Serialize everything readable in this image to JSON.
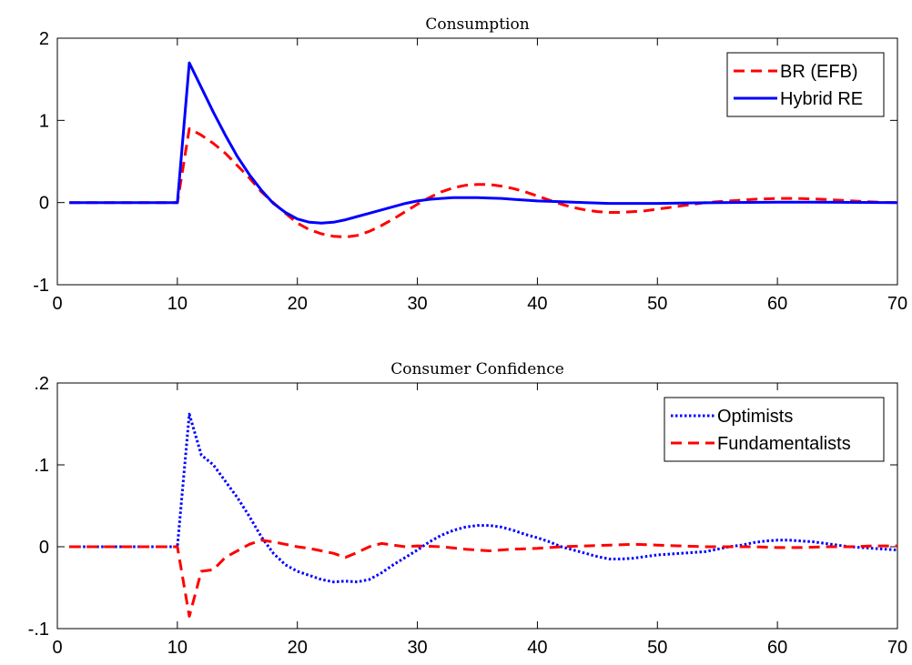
{
  "chart_data": [
    {
      "type": "line",
      "title": "Consumption",
      "xlabel": "",
      "ylabel": "",
      "xlim": [
        0,
        70
      ],
      "ylim": [
        -1,
        2
      ],
      "xticks": [
        0,
        10,
        20,
        30,
        40,
        50,
        60,
        70
      ],
      "yticks": [
        -1,
        0,
        1,
        2
      ],
      "grid": false,
      "legend_position": "top-right",
      "series": [
        {
          "name": "BR (EFB)",
          "color": "#ff0000",
          "style": "dashed",
          "x": [
            1,
            10,
            11,
            12,
            13,
            14,
            15,
            16,
            17,
            18,
            19,
            20,
            21,
            22,
            23,
            24,
            25,
            26,
            27,
            28,
            29,
            30,
            31,
            32,
            33,
            34,
            35,
            36,
            37,
            38,
            39,
            40,
            41,
            42,
            43,
            44,
            45,
            46,
            47,
            48,
            49,
            50,
            51,
            52,
            53,
            54,
            55,
            56,
            57,
            58,
            59,
            60,
            61,
            62,
            63,
            64,
            65,
            66,
            67,
            68,
            69,
            70
          ],
          "y": [
            0,
            0,
            0.9,
            0.82,
            0.72,
            0.6,
            0.45,
            0.3,
            0.13,
            0.0,
            -0.13,
            -0.25,
            -0.33,
            -0.38,
            -0.41,
            -0.42,
            -0.4,
            -0.35,
            -0.28,
            -0.2,
            -0.11,
            -0.02,
            0.06,
            0.13,
            0.18,
            0.21,
            0.22,
            0.22,
            0.2,
            0.17,
            0.13,
            0.08,
            0.03,
            -0.02,
            -0.06,
            -0.09,
            -0.11,
            -0.12,
            -0.12,
            -0.11,
            -0.1,
            -0.08,
            -0.06,
            -0.04,
            -0.02,
            0.0,
            0.01,
            0.02,
            0.03,
            0.04,
            0.045,
            0.05,
            0.05,
            0.048,
            0.044,
            0.038,
            0.03,
            0.022,
            0.014,
            0.007,
            0.002,
            0.0
          ]
        },
        {
          "name": "Hybrid RE",
          "color": "#0000ff",
          "style": "solid",
          "x": [
            1,
            10,
            11,
            12,
            13,
            14,
            15,
            16,
            17,
            18,
            19,
            20,
            21,
            22,
            23,
            24,
            25,
            26,
            27,
            28,
            29,
            30,
            31,
            32,
            33,
            34,
            35,
            36,
            37,
            38,
            39,
            40,
            42,
            44,
            46,
            48,
            50,
            55,
            60,
            65,
            70
          ],
          "y": [
            0,
            0,
            1.7,
            1.4,
            1.1,
            0.82,
            0.56,
            0.34,
            0.15,
            -0.01,
            -0.12,
            -0.2,
            -0.24,
            -0.25,
            -0.24,
            -0.21,
            -0.17,
            -0.13,
            -0.09,
            -0.05,
            -0.01,
            0.02,
            0.04,
            0.05,
            0.06,
            0.06,
            0.06,
            0.055,
            0.05,
            0.04,
            0.03,
            0.02,
            0.01,
            0.0,
            -0.01,
            -0.01,
            -0.01,
            0.0,
            0.005,
            0.003,
            0.0
          ]
        }
      ]
    },
    {
      "type": "line",
      "title": "Consumer Confidence",
      "xlabel": "",
      "ylabel": "",
      "xlim": [
        0,
        70
      ],
      "ylim": [
        -0.1,
        0.2
      ],
      "xticks": [
        0,
        10,
        20,
        30,
        40,
        50,
        60,
        70
      ],
      "yticks": [
        -0.1,
        0,
        0.1,
        0.2
      ],
      "grid": false,
      "legend_position": "top-right",
      "series": [
        {
          "name": "Optimists",
          "color": "#0000ff",
          "style": "dotted",
          "x": [
            1,
            10,
            11,
            12,
            13,
            14,
            15,
            16,
            17,
            18,
            19,
            20,
            21,
            22,
            23,
            24,
            25,
            26,
            27,
            28,
            29,
            30,
            31,
            32,
            33,
            34,
            35,
            36,
            37,
            38,
            39,
            40,
            41,
            42,
            43,
            44,
            45,
            46,
            47,
            48,
            49,
            50,
            51,
            52,
            53,
            54,
            55,
            56,
            57,
            58,
            59,
            60,
            61,
            62,
            63,
            64,
            65,
            66,
            67,
            68,
            69,
            70
          ],
          "y": [
            0,
            0,
            0.162,
            0.112,
            0.1,
            0.08,
            0.06,
            0.037,
            0.012,
            -0.008,
            -0.022,
            -0.03,
            -0.035,
            -0.04,
            -0.043,
            -0.042,
            -0.043,
            -0.04,
            -0.032,
            -0.022,
            -0.013,
            -0.004,
            0.006,
            0.014,
            0.02,
            0.024,
            0.026,
            0.026,
            0.024,
            0.02,
            0.015,
            0.011,
            0.006,
            0.0,
            -0.004,
            -0.008,
            -0.012,
            -0.015,
            -0.015,
            -0.014,
            -0.012,
            -0.01,
            -0.009,
            -0.008,
            -0.007,
            -0.006,
            -0.003,
            0.0,
            0.002,
            0.005,
            0.007,
            0.008,
            0.008,
            0.007,
            0.006,
            0.004,
            0.002,
            0.0,
            -0.001,
            -0.002,
            -0.003,
            -0.004
          ]
        },
        {
          "name": "Fundamentalists",
          "color": "#ff0000",
          "style": "dashed",
          "x": [
            1,
            10,
            11,
            12,
            13,
            14,
            15,
            16,
            17,
            18,
            19,
            20,
            21,
            22,
            23,
            24,
            25,
            26,
            27,
            28,
            29,
            30,
            32,
            34,
            36,
            38,
            40,
            42,
            44,
            46,
            48,
            50,
            52,
            54,
            56,
            58,
            60,
            62,
            64,
            66,
            68,
            70
          ],
          "y": [
            0,
            0,
            -0.085,
            -0.03,
            -0.028,
            -0.013,
            -0.005,
            0.003,
            0.008,
            0.006,
            0.003,
            0.0,
            -0.002,
            -0.005,
            -0.008,
            -0.013,
            -0.007,
            0.0,
            0.004,
            0.002,
            0.0,
            0.001,
            0.0,
            -0.003,
            -0.005,
            -0.003,
            -0.002,
            0.0,
            0.001,
            0.002,
            0.003,
            0.002,
            0.001,
            0.0,
            0.0,
            0.0,
            -0.001,
            -0.001,
            0.0,
            0.0,
            0.001,
            0.001
          ]
        }
      ]
    }
  ]
}
